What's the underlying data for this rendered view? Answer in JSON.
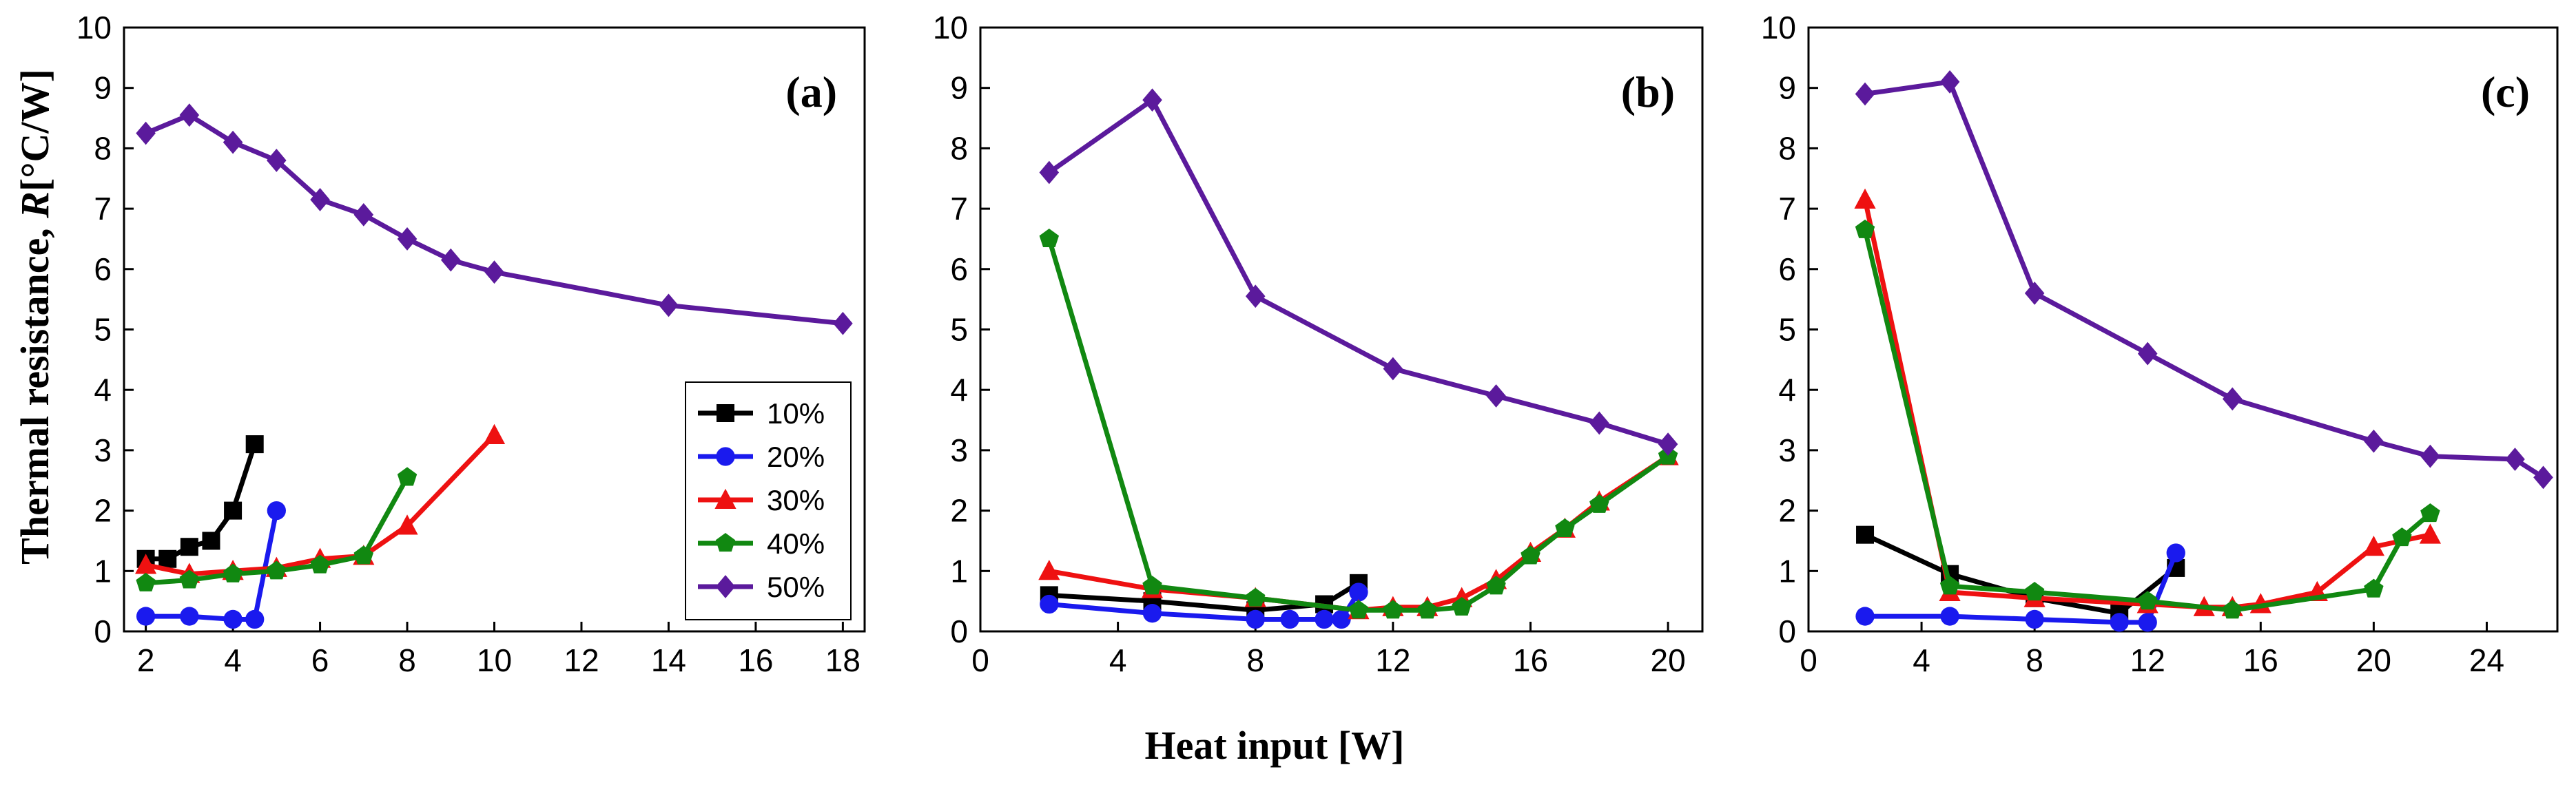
{
  "figure": {
    "ylabel_prefix": "Thermal resistance, ",
    "ylabel_symbol": "R",
    "ylabel_unit": "[°C/W]",
    "xlabel": "Heat input [W]",
    "colors": {
      "10%": "#000000",
      "20%": "#1a1aee",
      "30%": "#ee1111",
      "40%": "#118811",
      "50%": "#5b1a9c"
    },
    "markers": {
      "10%": "square",
      "20%": "circle",
      "30%": "triangle",
      "40%": "pentagon",
      "50%": "diamond"
    }
  },
  "chart_data": [
    {
      "type": "line",
      "panel_label": "(a)",
      "xlim": [
        1.5,
        18.5
      ],
      "ylim": [
        0,
        10
      ],
      "xticks": [
        2,
        4,
        6,
        8,
        10,
        12,
        14,
        16,
        18
      ],
      "yticks": [
        0,
        1,
        2,
        3,
        4,
        5,
        6,
        7,
        8,
        9,
        10
      ],
      "legend": {
        "position": "lower-right",
        "entries": [
          "10%",
          "20%",
          "30%",
          "40%",
          "50%"
        ]
      },
      "series": [
        {
          "name": "10%",
          "x": [
            2,
            2.5,
            3,
            3.5,
            4,
            4.5
          ],
          "y": [
            1.2,
            1.2,
            1.4,
            1.5,
            2.0,
            3.1
          ]
        },
        {
          "name": "20%",
          "x": [
            2,
            3,
            4,
            4.5,
            5
          ],
          "y": [
            0.25,
            0.25,
            0.2,
            0.2,
            2.0
          ]
        },
        {
          "name": "30%",
          "x": [
            2,
            3,
            4,
            5,
            6,
            7,
            8,
            10
          ],
          "y": [
            1.1,
            0.95,
            1.0,
            1.05,
            1.2,
            1.25,
            1.75,
            3.25
          ]
        },
        {
          "name": "40%",
          "x": [
            2,
            3,
            4,
            5,
            6,
            7,
            8
          ],
          "y": [
            0.8,
            0.85,
            0.95,
            1.0,
            1.1,
            1.25,
            2.55
          ]
        },
        {
          "name": "50%",
          "x": [
            2,
            3,
            4,
            5,
            6,
            7,
            8,
            9,
            10,
            14,
            18
          ],
          "y": [
            8.25,
            8.55,
            8.1,
            7.8,
            7.15,
            6.9,
            6.5,
            6.15,
            5.95,
            5.4,
            5.1
          ]
        }
      ]
    },
    {
      "type": "line",
      "panel_label": "(b)",
      "xlim": [
        0,
        21
      ],
      "ylim": [
        0,
        10
      ],
      "xticks": [
        0,
        4,
        8,
        12,
        16,
        20
      ],
      "yticks": [
        0,
        1,
        2,
        3,
        4,
        5,
        6,
        7,
        8,
        9,
        10
      ],
      "series": [
        {
          "name": "10%",
          "x": [
            2,
            5,
            8,
            10,
            11
          ],
          "y": [
            0.6,
            0.5,
            0.35,
            0.45,
            0.8
          ]
        },
        {
          "name": "20%",
          "x": [
            2,
            5,
            8,
            9,
            10,
            10.5,
            11
          ],
          "y": [
            0.45,
            0.3,
            0.2,
            0.2,
            0.2,
            0.2,
            0.65
          ]
        },
        {
          "name": "30%",
          "x": [
            2,
            5,
            8,
            11,
            12,
            13,
            14,
            15,
            16,
            17,
            18,
            20
          ],
          "y": [
            1.0,
            0.7,
            0.55,
            0.35,
            0.4,
            0.4,
            0.55,
            0.85,
            1.3,
            1.7,
            2.15,
            2.9
          ]
        },
        {
          "name": "40%",
          "x": [
            2,
            5,
            8,
            11,
            12,
            13,
            14,
            15,
            16,
            17,
            18,
            20
          ],
          "y": [
            6.5,
            0.75,
            0.55,
            0.35,
            0.35,
            0.35,
            0.4,
            0.75,
            1.25,
            1.7,
            2.1,
            2.9
          ]
        },
        {
          "name": "50%",
          "x": [
            2,
            5,
            8,
            12,
            15,
            18,
            20
          ],
          "y": [
            7.6,
            8.8,
            5.55,
            4.35,
            3.9,
            3.45,
            3.1
          ]
        }
      ]
    },
    {
      "type": "line",
      "panel_label": "(c)",
      "xlim": [
        0,
        26.5
      ],
      "ylim": [
        0,
        10
      ],
      "xticks": [
        0,
        4,
        8,
        12,
        16,
        20,
        24
      ],
      "yticks": [
        0,
        1,
        2,
        3,
        4,
        5,
        6,
        7,
        8,
        9,
        10
      ],
      "series": [
        {
          "name": "10%",
          "x": [
            2,
            5,
            8,
            11,
            13
          ],
          "y": [
            1.6,
            0.95,
            0.55,
            0.3,
            1.05
          ]
        },
        {
          "name": "20%",
          "x": [
            2,
            5,
            8,
            11,
            12,
            13
          ],
          "y": [
            0.25,
            0.25,
            0.2,
            0.15,
            0.15,
            1.3
          ]
        },
        {
          "name": "30%",
          "x": [
            2,
            5,
            8,
            12,
            14,
            15,
            16,
            18,
            20,
            22
          ],
          "y": [
            7.15,
            0.65,
            0.55,
            0.45,
            0.4,
            0.4,
            0.45,
            0.65,
            1.4,
            1.6
          ]
        },
        {
          "name": "40%",
          "x": [
            2,
            5,
            8,
            12,
            15,
            20,
            21,
            22
          ],
          "y": [
            6.65,
            0.75,
            0.65,
            0.5,
            0.35,
            0.7,
            1.55,
            1.95
          ]
        },
        {
          "name": "50%",
          "x": [
            2,
            5,
            8,
            12,
            15,
            20,
            22,
            25,
            26
          ],
          "y": [
            8.9,
            9.1,
            5.6,
            4.6,
            3.85,
            3.15,
            2.9,
            2.85,
            2.55
          ]
        }
      ]
    }
  ]
}
